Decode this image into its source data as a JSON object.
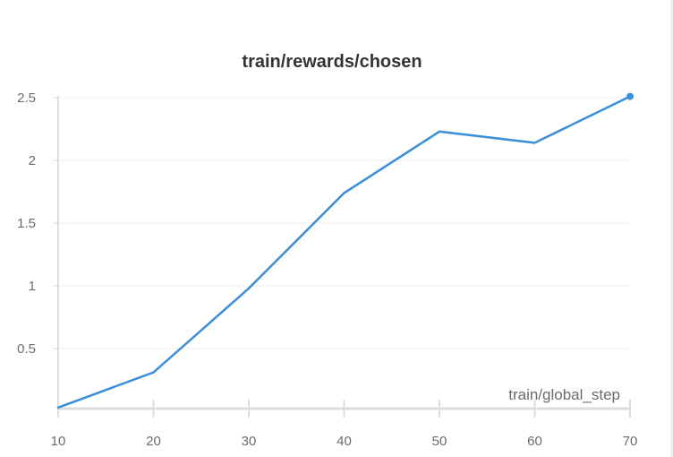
{
  "chart_data": {
    "type": "line",
    "title": "train/rewards/chosen",
    "xlabel": "train/global_step",
    "ylabel": "",
    "x": [
      10,
      20,
      30,
      40,
      50,
      60,
      70
    ],
    "series": [
      {
        "values": [
          0.03,
          0.31,
          0.98,
          1.74,
          2.23,
          2.14,
          2.51
        ],
        "color": "#3a8fd8"
      }
    ],
    "xticks": [
      "10",
      "20",
      "30",
      "40",
      "50",
      "60",
      "70"
    ],
    "yticks": [
      "0.5",
      "1",
      "1.5",
      "2",
      "2.5"
    ],
    "xlim": [
      10,
      70
    ],
    "ylim": [
      0,
      2.5
    ],
    "grid": true,
    "legend": "none"
  }
}
